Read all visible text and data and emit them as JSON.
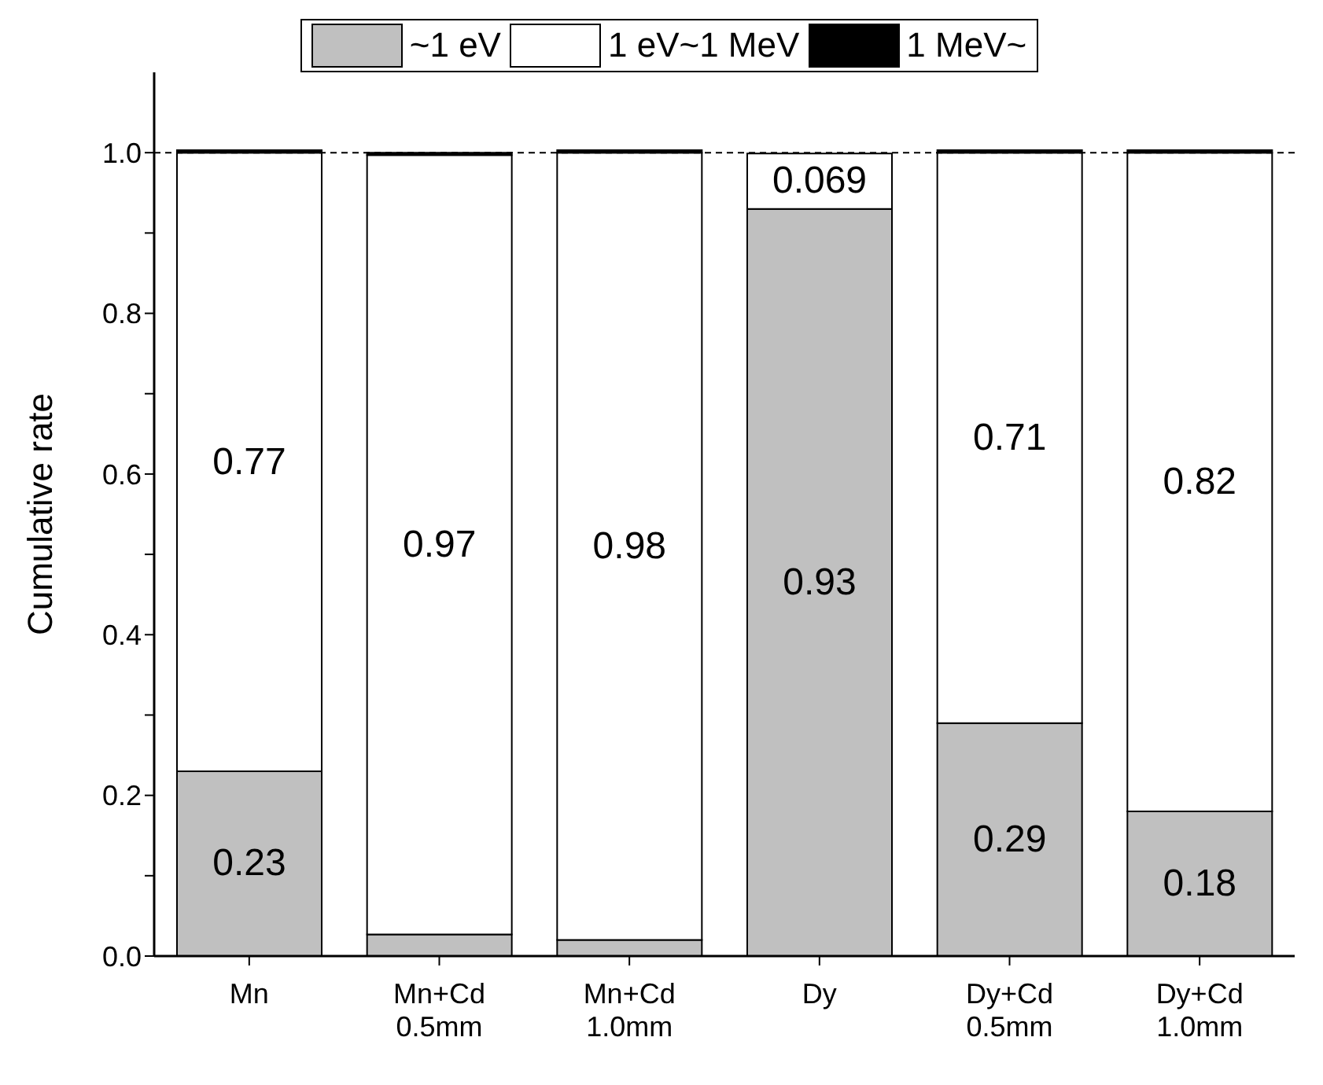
{
  "chart_data": {
    "type": "bar",
    "stacked": true,
    "ylabel": "Cumulative rate",
    "categories": [
      "Mn",
      "Mn+Cd\n0.5mm",
      "Mn+Cd\n1.0mm",
      "Dy",
      "Dy+Cd\n0.5mm",
      "Dy+Cd\n1.0mm"
    ],
    "series": [
      {
        "name": "~1 eV",
        "color": "#c0c0c0",
        "values": [
          0.23,
          0.027,
          0.02,
          0.93,
          0.29,
          0.18
        ],
        "value_labels": [
          "0.23",
          null,
          null,
          "0.93",
          "0.29",
          "0.18"
        ]
      },
      {
        "name": "1 eV~1 MeV",
        "color": "#ffffff",
        "values": [
          0.77,
          0.97,
          0.98,
          0.069,
          0.71,
          0.82
        ],
        "value_labels": [
          "0.77",
          "0.97",
          "0.98",
          "0.069",
          "0.71",
          "0.82"
        ]
      },
      {
        "name": "1 MeV~",
        "color": "#000000",
        "values": [
          0.003,
          0.003,
          0.003,
          null,
          0.003,
          0.003
        ]
      }
    ],
    "ylim": [
      0,
      1.1
    ],
    "yticks": [
      {
        "value": 0,
        "label": "0.0"
      },
      {
        "value": 0.1,
        "label": null
      },
      0.2,
      {
        "value": 0.3,
        "label": null
      },
      0.4,
      {
        "value": 0.5,
        "label": null
      },
      0.6,
      {
        "value": 0.7,
        "label": null
      },
      0.8,
      {
        "value": 0.9,
        "label": null
      },
      {
        "value": 1,
        "label": "1.0"
      }
    ],
    "ref_lines": [
      {
        "axis": "y",
        "value": 1,
        "color": "#000000",
        "line_style": "dashed"
      }
    ],
    "grid": false,
    "legend": "top"
  }
}
